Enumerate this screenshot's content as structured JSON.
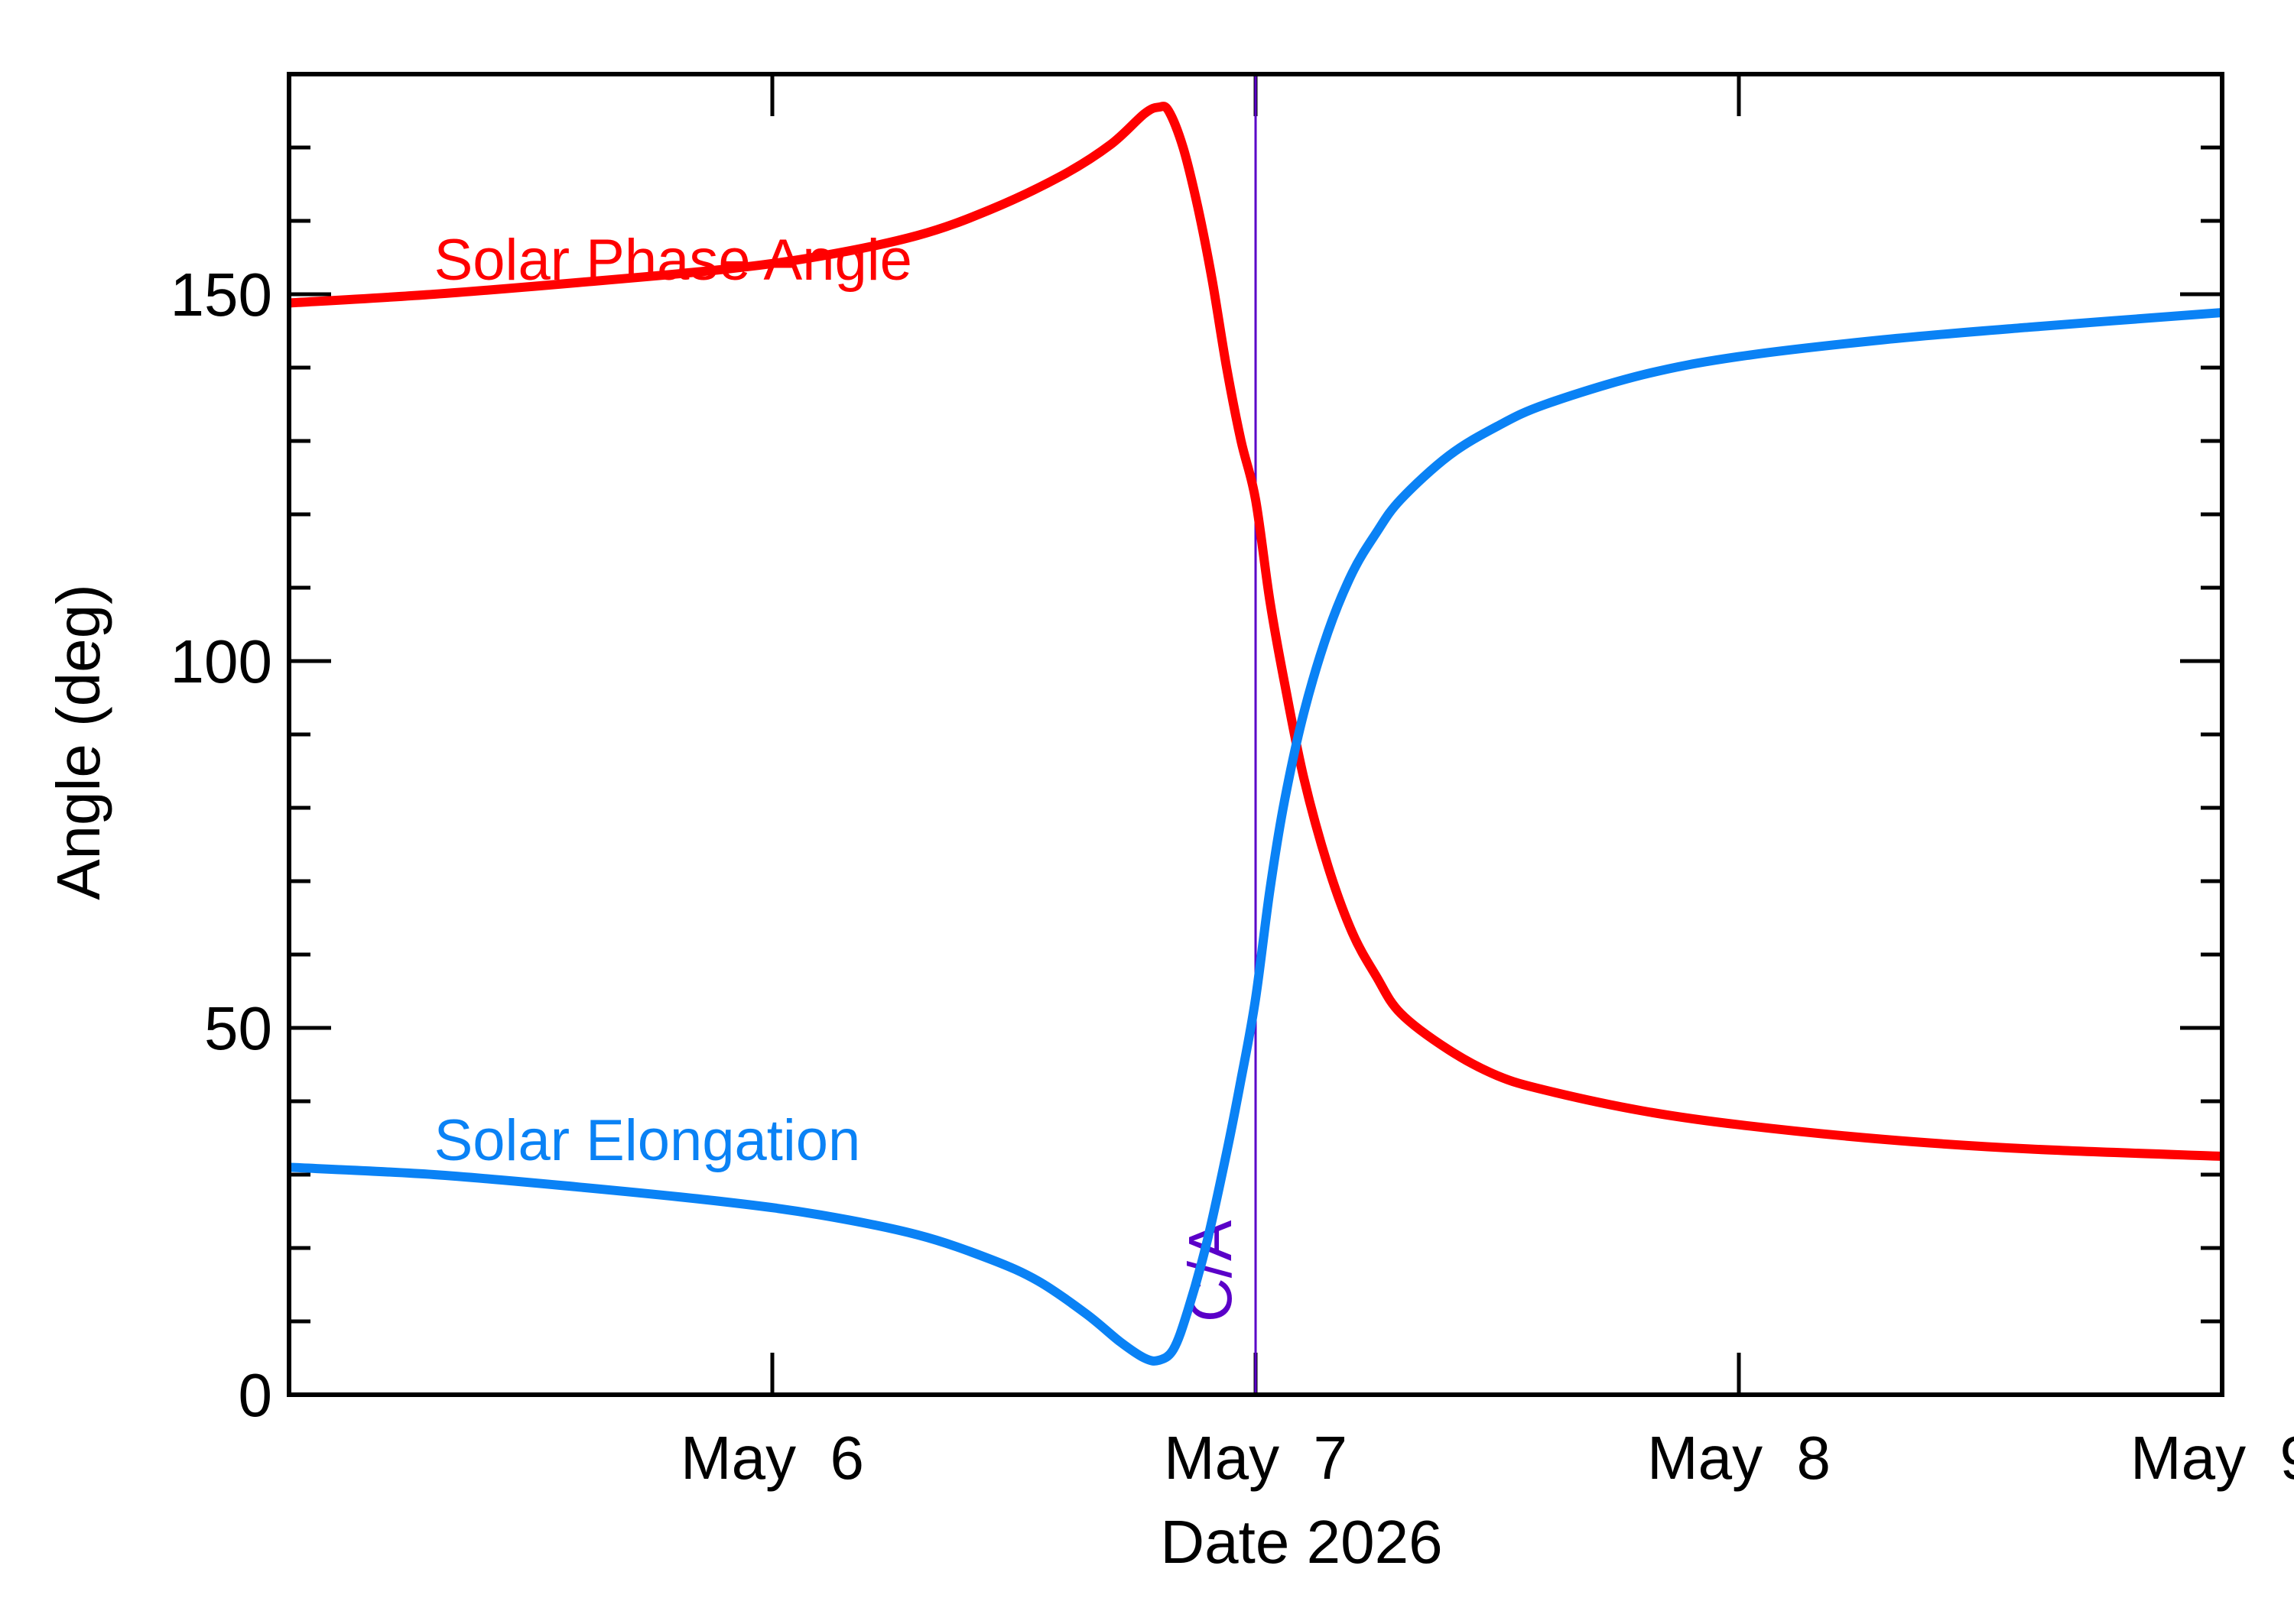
{
  "chart_data": {
    "type": "line",
    "xlabel": "Date 2026",
    "ylabel": "Angle (deg)",
    "x_unit": "days, May 2026 (fractional day of month)",
    "xlim": [
      5.0,
      9.0
    ],
    "ylim": [
      0,
      180
    ],
    "x_ticks": [
      {
        "value": 6,
        "label": "May  6"
      },
      {
        "value": 7,
        "label": "May  7"
      },
      {
        "value": 8,
        "label": "May  8"
      },
      {
        "value": 9,
        "label": "May  9"
      }
    ],
    "y_ticks": [
      {
        "value": 0,
        "label": "0"
      },
      {
        "value": 50,
        "label": "50"
      },
      {
        "value": 100,
        "label": "100"
      },
      {
        "value": 150,
        "label": "150"
      }
    ],
    "y_minor_step": 10,
    "grid": false,
    "closest_approach": {
      "x": 7.0,
      "label": "C/A",
      "color": "#5a00c8"
    },
    "series": [
      {
        "name": "Solar Phase Angle",
        "color": "#ff0000",
        "label_at": {
          "x": 5.3,
          "y": 152
        },
        "points": [
          [
            5.0,
            148.8
          ],
          [
            5.3,
            150.0
          ],
          [
            5.6,
            151.6
          ],
          [
            5.9,
            153.4
          ],
          [
            6.1,
            155.2
          ],
          [
            6.3,
            158.0
          ],
          [
            6.45,
            161.5
          ],
          [
            6.6,
            166.2
          ],
          [
            6.7,
            170.4
          ],
          [
            6.77,
            174.6
          ],
          [
            6.8,
            175.5
          ],
          [
            6.82,
            175.0
          ],
          [
            6.85,
            170.0
          ],
          [
            6.88,
            162.0
          ],
          [
            6.91,
            152.0
          ],
          [
            6.94,
            140.0
          ],
          [
            6.97,
            130.0
          ],
          [
            7.0,
            122.0
          ],
          [
            7.03,
            108.0
          ],
          [
            7.06,
            97.0
          ],
          [
            7.1,
            84.0
          ],
          [
            7.15,
            72.0
          ],
          [
            7.2,
            63.0
          ],
          [
            7.25,
            57.0
          ],
          [
            7.3,
            52.0
          ],
          [
            7.4,
            47.0
          ],
          [
            7.5,
            43.5
          ],
          [
            7.6,
            41.5
          ],
          [
            7.8,
            38.7
          ],
          [
            8.0,
            36.8
          ],
          [
            8.3,
            34.8
          ],
          [
            8.6,
            33.5
          ],
          [
            9.0,
            32.5
          ]
        ]
      },
      {
        "name": "Solar Elongation",
        "color": "#0a82f5",
        "label_at": {
          "x": 5.3,
          "y": 32
        },
        "points": [
          [
            5.0,
            31.0
          ],
          [
            5.3,
            30.0
          ],
          [
            5.6,
            28.3
          ],
          [
            5.9,
            26.3
          ],
          [
            6.1,
            24.5
          ],
          [
            6.3,
            21.8
          ],
          [
            6.45,
            18.5
          ],
          [
            6.55,
            15.5
          ],
          [
            6.65,
            11.0
          ],
          [
            6.72,
            7.2
          ],
          [
            6.77,
            5.0
          ],
          [
            6.8,
            4.7
          ],
          [
            6.83,
            6.2
          ],
          [
            6.86,
            11.5
          ],
          [
            6.9,
            21.0
          ],
          [
            6.94,
            33.0
          ],
          [
            6.97,
            43.0
          ],
          [
            7.0,
            54.0
          ],
          [
            7.03,
            69.0
          ],
          [
            7.06,
            81.0
          ],
          [
            7.1,
            93.0
          ],
          [
            7.15,
            104.0
          ],
          [
            7.2,
            112.0
          ],
          [
            7.25,
            117.5
          ],
          [
            7.3,
            122.0
          ],
          [
            7.4,
            128.0
          ],
          [
            7.5,
            132.0
          ],
          [
            7.6,
            135.0
          ],
          [
            7.8,
            139.0
          ],
          [
            8.0,
            141.5
          ],
          [
            8.3,
            143.8
          ],
          [
            8.6,
            145.5
          ],
          [
            9.0,
            147.5
          ]
        ]
      }
    ]
  }
}
